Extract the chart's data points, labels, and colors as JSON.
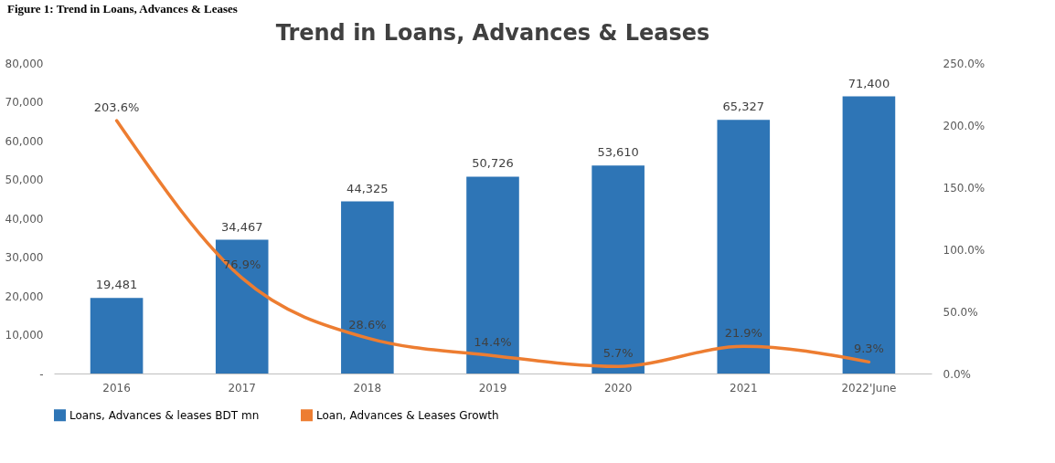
{
  "chart_data": {
    "type": "bar",
    "title": "Trend in Loans, Advances & Leases",
    "annotations": [
      "Figure 1: Trend in Loans, Advances & Leases"
    ],
    "categories": [
      "2016",
      "2017",
      "2018",
      "2019",
      "2020",
      "2021",
      "2022'June"
    ],
    "series": [
      {
        "name": "Loans, Advances & leases BDT mn",
        "color": "#2e75b6",
        "values": [
          19481,
          34467,
          44325,
          50726,
          53610,
          65327,
          71400
        ],
        "value_labels": [
          "19,481",
          "34,467",
          "44,325",
          "50,726",
          "53,610",
          "65,327",
          "71,400"
        ]
      },
      {
        "name": "Loan, Advances & Leases Growth",
        "type": "line",
        "axis": "y2",
        "color": "#ed7d31",
        "values": [
          203.6,
          76.9,
          28.6,
          14.4,
          5.7,
          21.9,
          9.3
        ],
        "value_labels": [
          "203.6%",
          "76.9%",
          "28.6%",
          "14.4%",
          "5.7%",
          "21.9%",
          "9.3%"
        ]
      }
    ],
    "ylim": [
      0,
      80000
    ],
    "yticks": [
      {
        "value": 0,
        "label": "-"
      },
      {
        "value": 10000,
        "label": "10,000"
      },
      {
        "value": 20000,
        "label": "20,000"
      },
      {
        "value": 30000,
        "label": "30,000"
      },
      {
        "value": 40000,
        "label": "40,000"
      },
      {
        "value": 50000,
        "label": "50,000"
      },
      {
        "value": 60000,
        "label": "60,000"
      },
      {
        "value": 70000,
        "label": "70,000"
      },
      {
        "value": 80000,
        "label": "80,000"
      }
    ],
    "y2lim": [
      0,
      250
    ],
    "y2ticks": [
      {
        "value": 0,
        "label": "0.0%"
      },
      {
        "value": 50,
        "label": "50.0%"
      },
      {
        "value": 100,
        "label": "100.0%"
      },
      {
        "value": 150,
        "label": "150.0%"
      },
      {
        "value": 200,
        "label": "200.0%"
      },
      {
        "value": 250,
        "label": "250.0%"
      }
    ],
    "grid": false,
    "legend": "bottom"
  }
}
